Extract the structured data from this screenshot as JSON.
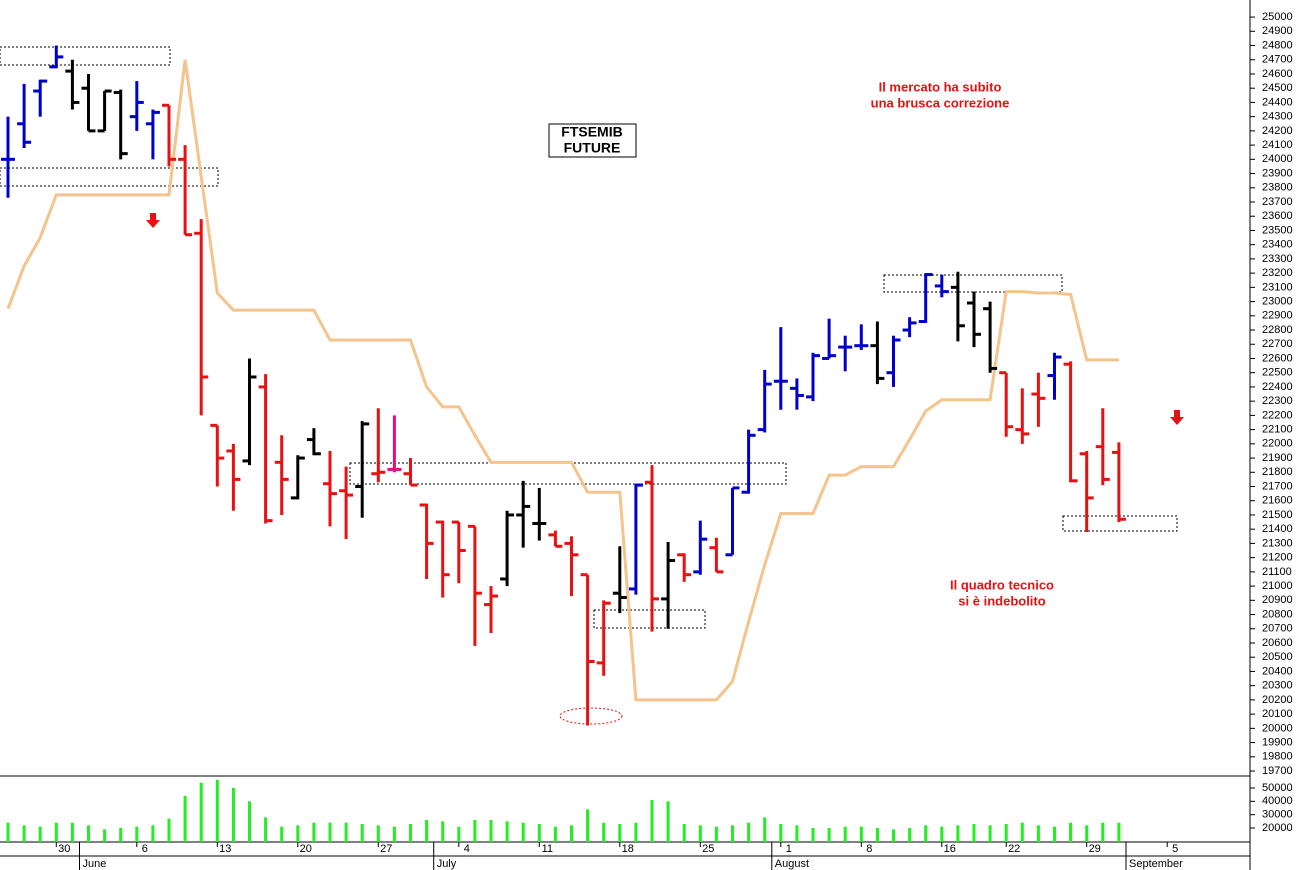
{
  "chart_data": {
    "type": "ohlc",
    "title": [
      "FTSEMIB",
      "FUTURE"
    ],
    "annotations": [
      "Il mercato ha subito",
      "una brusca correzione",
      "Il quadro tecnico",
      "si è indebolito"
    ],
    "categories": [
      null,
      null,
      null,
      "30",
      null,
      null,
      null,
      null,
      "6",
      null,
      null,
      null,
      null,
      "13",
      null,
      null,
      null,
      null,
      "20",
      null,
      null,
      null,
      null,
      "27",
      null,
      null,
      null,
      null,
      "4",
      null,
      null,
      null,
      null,
      "11",
      null,
      null,
      null,
      null,
      "18",
      null,
      null,
      null,
      null,
      "25",
      null,
      null,
      null,
      null,
      "1",
      null,
      null,
      null,
      null,
      "8",
      null,
      null,
      null,
      null,
      "16",
      null,
      null,
      null,
      "22",
      null,
      null,
      null,
      null,
      "29",
      null,
      null,
      null,
      null,
      "5"
    ],
    "months": [
      null,
      null,
      null,
      null,
      null,
      "June",
      null,
      null,
      null,
      null,
      null,
      null,
      null,
      null,
      null,
      null,
      null,
      null,
      null,
      null,
      null,
      null,
      null,
      null,
      null,
      null,
      null,
      "July",
      null,
      null,
      null,
      null,
      null,
      null,
      null,
      null,
      null,
      null,
      null,
      null,
      null,
      null,
      null,
      null,
      null,
      null,
      null,
      null,
      "August",
      null,
      null,
      null,
      null,
      null,
      null,
      null,
      null,
      null,
      null,
      null,
      null,
      null,
      null,
      null,
      null,
      null,
      null,
      null,
      null,
      null,
      "September",
      null,
      null
    ],
    "series": [
      {
        "open": [
          24000,
          24250,
          24480,
          24650,
          24620,
          24500,
          24200,
          24470,
          24300,
          24250,
          24380,
          24000,
          23480,
          22130,
          21950,
          21880,
          22400,
          21870,
          21620,
          22030,
          21720,
          21670,
          21700,
          21790,
          21820,
          21790,
          21570,
          21450,
          21450,
          21420,
          20870,
          21050,
          21500,
          21440,
          21360,
          21300,
          21080,
          20460,
          20950,
          20980,
          21730,
          20910,
          21220,
          21100,
          21270,
          21220,
          21660,
          22100,
          22440,
          22390,
          22330,
          22600,
          22680,
          22690,
          22690,
          22500,
          22800,
          22860,
          23110,
          23100,
          22990,
          22950,
          22500,
          22100,
          22350,
          22480,
          22560,
          21930,
          21980,
          21940,
          null,
          null,
          null
        ],
        "high": [
          24300,
          24530,
          24560,
          24800,
          24700,
          24600,
          24480,
          24490,
          24550,
          24350,
          24380,
          24100,
          23580,
          22130,
          22000,
          22600,
          22490,
          22060,
          21920,
          22110,
          21950,
          21840,
          22160,
          22250,
          22200,
          21900,
          21580,
          21460,
          21450,
          21420,
          21000,
          21530,
          21740,
          21690,
          21390,
          21350,
          21080,
          20900,
          21280,
          21720,
          21850,
          21310,
          21230,
          21460,
          21340,
          21690,
          22100,
          22520,
          22820,
          22460,
          22640,
          22880,
          22760,
          22840,
          22860,
          22760,
          22890,
          23200,
          23190,
          23210,
          23070,
          23000,
          22500,
          22390,
          22500,
          22640,
          22580,
          21950,
          22250,
          22010,
          null,
          null,
          null
        ],
        "low": [
          23730,
          24080,
          24300,
          24640,
          24350,
          24200,
          24200,
          24000,
          24200,
          24000,
          23950,
          23470,
          22200,
          21700,
          21530,
          21850,
          21440,
          21500,
          21610,
          21920,
          21420,
          21330,
          21480,
          21730,
          21800,
          21710,
          21050,
          20920,
          21020,
          20580,
          20670,
          21000,
          21270,
          21320,
          21280,
          20930,
          20020,
          20370,
          20810,
          20940,
          20680,
          20700,
          21030,
          21080,
          21100,
          21220,
          21650,
          22080,
          22240,
          22240,
          22300,
          22600,
          22510,
          22660,
          22420,
          22400,
          22750,
          22850,
          23030,
          22720,
          22680,
          22500,
          22050,
          22000,
          22120,
          22310,
          21730,
          21380,
          21710,
          21450,
          null,
          null,
          null
        ],
        "close": [
          24000,
          24120,
          24550,
          24720,
          24400,
          24200,
          24480,
          24040,
          24400,
          24330,
          24000,
          23470,
          22470,
          21900,
          21750,
          22470,
          21460,
          21750,
          21900,
          21930,
          21650,
          21640,
          22140,
          21800,
          21820,
          21710,
          21300,
          21080,
          21250,
          20950,
          20930,
          21500,
          21560,
          21440,
          21280,
          21220,
          20470,
          20880,
          20920,
          21710,
          20910,
          21180,
          21080,
          21330,
          21100,
          21690,
          22060,
          22420,
          22440,
          22340,
          22620,
          22620,
          22680,
          22690,
          22460,
          22730,
          22850,
          23190,
          23070,
          22830,
          22770,
          22530,
          22120,
          22070,
          22320,
          22610,
          21740,
          21620,
          21750,
          21470,
          null,
          null,
          null
        ],
        "colors": [
          "#0000cc",
          "#0000cc",
          "#0000cc",
          "#0000cc",
          "#000000",
          "#000000",
          "#000000",
          "#000000",
          "#0000cc",
          "#0000cc",
          "#e81010",
          "#e81010",
          "#e81010",
          "#e81010",
          "#e81010",
          "#000000",
          "#e81010",
          "#e81010",
          "#000000",
          "#000000",
          "#e81010",
          "#e81010",
          "#000000",
          "#e81010",
          "#e0107a",
          "#e81010",
          "#e81010",
          "#e81010",
          "#e81010",
          "#e81010",
          "#e81010",
          "#000000",
          "#000000",
          "#000000",
          "#e81010",
          "#e81010",
          "#e81010",
          "#e81010",
          "#000000",
          "#0000cc",
          "#e81010",
          "#000000",
          "#e81010",
          "#0000cc",
          "#e81010",
          "#0000cc",
          "#0000cc",
          "#0000cc",
          "#0000cc",
          "#0000cc",
          "#0000cc",
          "#0000cc",
          "#0000cc",
          "#0000cc",
          "#000000",
          "#0000cc",
          "#0000cc",
          "#0000cc",
          "#0000cc",
          "#000000",
          "#000000",
          "#000000",
          "#e81010",
          "#e81010",
          "#e81010",
          "#0000cc",
          "#e81010",
          "#e81010",
          "#e81010",
          "#e81010",
          null,
          null,
          null
        ]
      }
    ],
    "stop_line": {
      "color": "#f5c48c",
      "values": [
        22950,
        23250,
        23450,
        23750,
        23750,
        23750,
        23750,
        23750,
        23750,
        23750,
        23750,
        24700,
        23880,
        23060,
        22940,
        22940,
        22940,
        22940,
        22940,
        22940,
        22730,
        22730,
        22730,
        22730,
        22730,
        22730,
        22400,
        22260,
        22260,
        22060,
        21870,
        21870,
        21870,
        21870,
        21870,
        21870,
        21660,
        21660,
        21660,
        20200,
        20200,
        20200,
        20200,
        20200,
        20200,
        20330,
        20750,
        21150,
        21510,
        21510,
        21510,
        21780,
        21780,
        21840,
        21840,
        21840,
        22030,
        22230,
        22310,
        22310,
        22310,
        22310,
        23070,
        23070,
        23060,
        23060,
        23050,
        22590,
        22590,
        22590,
        null,
        null,
        null
      ]
    },
    "ylim": [
      19665,
      25120
    ],
    "yticks": [
      19700,
      19800,
      19900,
      20000,
      20100,
      20200,
      20300,
      20400,
      20500,
      20600,
      20700,
      20800,
      20900,
      21000,
      21100,
      21200,
      21300,
      21400,
      21500,
      21600,
      21700,
      21800,
      21900,
      22000,
      22100,
      22200,
      22300,
      22400,
      22500,
      22600,
      22700,
      22800,
      22900,
      23000,
      23100,
      23200,
      23300,
      23400,
      23500,
      23600,
      23700,
      23800,
      23900,
      24000,
      24100,
      24200,
      24300,
      24400,
      24500,
      24600,
      24700,
      24800,
      24900,
      25000
    ],
    "volume": {
      "color": "#22ee22",
      "values": [
        24000,
        22000,
        21000,
        24000,
        24000,
        22000,
        19000,
        20000,
        21000,
        22000,
        27000,
        44000,
        54000,
        56000,
        50000,
        40000,
        28000,
        21000,
        22000,
        24000,
        24000,
        24000,
        23000,
        22000,
        21000,
        23000,
        26000,
        25000,
        21000,
        26000,
        26000,
        25000,
        24000,
        23000,
        21000,
        22000,
        34000,
        24000,
        23000,
        24000,
        41000,
        40000,
        23000,
        22000,
        21000,
        22000,
        24000,
        28000,
        23000,
        22000,
        20000,
        20000,
        21000,
        21000,
        20000,
        19000,
        20000,
        22000,
        21000,
        22000,
        23000,
        22000,
        23000,
        24000,
        22000,
        21000,
        24000,
        22000,
        24000,
        24000,
        null,
        null,
        null
      ],
      "ylim": [
        9500,
        59000
      ],
      "yticks": [
        20000,
        30000,
        40000,
        50000
      ]
    }
  }
}
